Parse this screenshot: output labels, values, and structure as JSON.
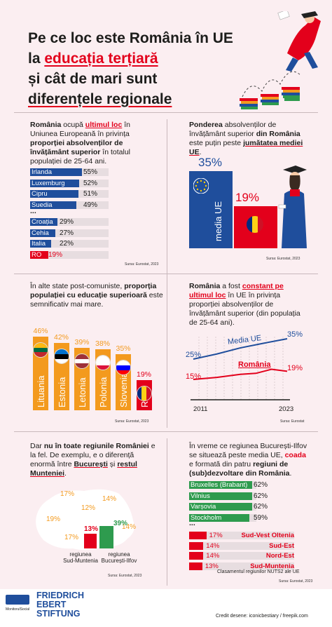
{
  "title": {
    "l1": "Pe ce loc este România în UE",
    "l2a": "la ",
    "l2b": "educația terțiară",
    "l3": "și cât de mari sunt",
    "l4": "diferențele regionale"
  },
  "p1": {
    "t1": "România",
    "t2": " ocupă ",
    "t3": "ultimul loc",
    "t4": " în Uniunea Europeană în privința ",
    "t5": "proporției absolvenților de învățământ superior",
    "t6": " în totalul populației de 25-64 ani.",
    "bars": [
      {
        "name": "Irlanda",
        "value": 55,
        "label": "55%"
      },
      {
        "name": "Luxemburg",
        "value": 52,
        "label": "52%"
      },
      {
        "name": "Cipru",
        "value": 51,
        "label": "51%"
      },
      {
        "name": "Suedia",
        "value": 49,
        "label": "49%"
      }
    ],
    "dots": "...",
    "bars2": [
      {
        "name": "Croația",
        "value": 29,
        "label": "29%"
      },
      {
        "name": "Cehia",
        "value": 27,
        "label": "27%"
      },
      {
        "name": "Italia",
        "value": 22,
        "label": "22%"
      },
      {
        "name": "RO",
        "value": 19,
        "label": "19%"
      }
    ],
    "source": "Sursa: Eurostat, 2023"
  },
  "p2": {
    "t1": "Ponderea",
    "t2": " absolvenților de învățământ superior ",
    "t3": "din România",
    "t4": " este puțin peste ",
    "t5": "jumătatea mediei UE",
    "t6": ".",
    "eu_pct": "35%",
    "eu_label": "media UE",
    "ro_pct": "19%",
    "source": "Sursa: Eurostat, 2023",
    "chart_data": {
      "type": "bar",
      "categories": [
        "media UE",
        "România"
      ],
      "values": [
        35,
        19
      ]
    }
  },
  "p3": {
    "t1": "În alte state post-comuniste, ",
    "t2": "proporția populației cu educație superioară",
    "t3": " este semnificativ mai mare.",
    "chart_data": {
      "type": "bar",
      "categories": [
        "Lituania",
        "Estonia",
        "Letonia",
        "Polonia",
        "Slovenia",
        "RO"
      ],
      "values": [
        46,
        42,
        39,
        38,
        35,
        19
      ],
      "labels": [
        "46%",
        "42%",
        "39%",
        "38%",
        "35%",
        "19%"
      ]
    },
    "source": "Sursa: Eurostat, 2023",
    "colors": {
      "main": "#f39a1e",
      "ro": "#e3001b"
    }
  },
  "p4": {
    "t1": "România",
    "t2": " a fost ",
    "t3": "constant pe ultimul loc",
    "t4": " în UE în privința proporției absolvenților de învățământ superior (din populația de 25-64 ani).",
    "chart_data": {
      "type": "line",
      "x": [
        2011,
        2023
      ],
      "series": [
        {
          "name": "Media UE",
          "values": [
            25,
            35
          ]
        },
        {
          "name": "România",
          "values": [
            15,
            19
          ]
        }
      ]
    },
    "eu_name": "Media UE",
    "ro_name": "România",
    "eu_start": "25%",
    "eu_end": "35%",
    "ro_start": "15%",
    "ro_end": "19%",
    "x_start": "2011",
    "x_end": "2023",
    "source": "Sursa: Eurostat"
  },
  "p5": {
    "t1": "Dar ",
    "t2": "nu în toate regiunile României",
    "t3": " e la fel. De exemplu, e o diferență enormă între ",
    "t4": "București",
    "t5": " și ",
    "t6": "restul Munteniei",
    "t7": ".",
    "regions": [
      "17%",
      "14%",
      "12%",
      "19%",
      "14%",
      "14%",
      "17%",
      "13%",
      "39%",
      "14%"
    ],
    "lbl_sm": "regiunea Sud-Muntenia",
    "lbl_bi": "regiunea București-Ilfov",
    "sm_val": 13,
    "bi_val": 39,
    "source": "Sursa: Eurostat, 2023"
  },
  "p6": {
    "t1": "În vreme ce regiunea București-Ilfov se situează peste media UE, ",
    "t2": "coada",
    "t3": " e formată din patru ",
    "t4": "regiuni de (sub)dezvoltare din România",
    "t5": ".",
    "top": [
      {
        "name": "Bruxelles (Brabant)",
        "value": 62,
        "label": "62%"
      },
      {
        "name": "Vilnius",
        "value": 62,
        "label": "62%"
      },
      {
        "name": "Varșovia",
        "value": 62,
        "label": "62%"
      },
      {
        "name": "Stockholm",
        "value": 59,
        "label": "59%"
      }
    ],
    "dots": "...",
    "bottom": [
      {
        "name": "Sud-Vest Oltenia",
        "value": 17,
        "label": "17%"
      },
      {
        "name": "Sud-Est",
        "value": 14,
        "label": "14%"
      },
      {
        "name": "Nord-Est",
        "value": 14,
        "label": "14%"
      },
      {
        "name": "Sud-Muntenia",
        "value": 13,
        "label": "13%"
      }
    ],
    "note": "Clasamentul regiunilor NUTS2 ale UE",
    "source": "Sursa: Eurostat, 2023"
  },
  "footer": {
    "ms": "MonitorulSocial",
    "fes1": "FRIEDRICH",
    "fes2": "EBERT",
    "fes3": "STIFTUNG",
    "credit": "Credit desene: iconicbestiary / freepik.com"
  }
}
